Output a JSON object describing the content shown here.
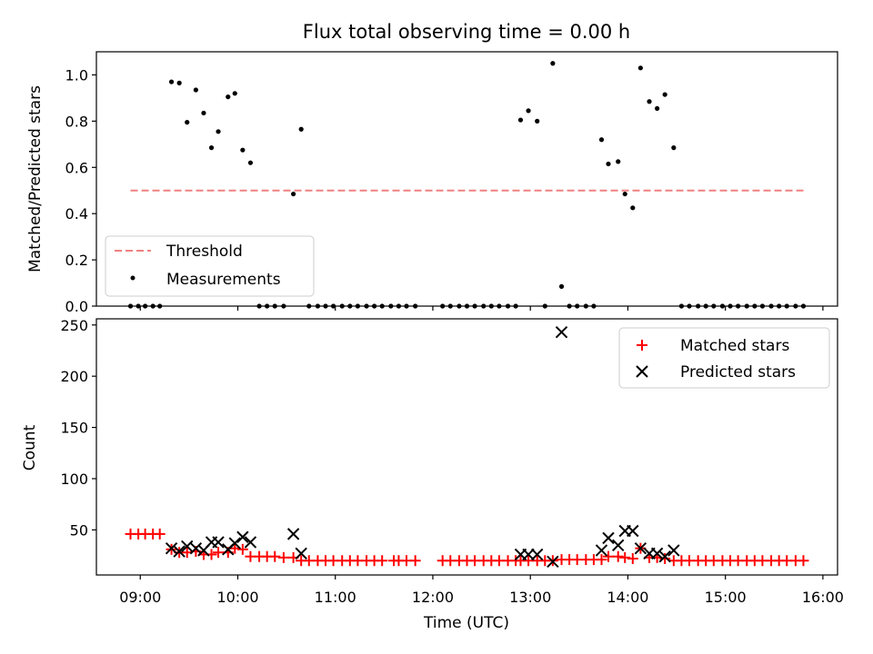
{
  "chart_data": [
    {
      "type": "scatter",
      "title": "Flux total observing time = 0.00 h",
      "xlabel": "",
      "ylabel": "Matched/Predicted stars",
      "xlim": [
        8.55,
        16.15
      ],
      "ylim": [
        0,
        1.1
      ],
      "yticks": [
        0.0,
        0.2,
        0.4,
        0.6,
        0.8,
        1.0
      ],
      "ytick_labels": [
        "0.0",
        "0.2",
        "0.4",
        "0.6",
        "0.8",
        "1.0"
      ],
      "xticks": [
        9,
        10,
        11,
        12,
        13,
        14,
        15,
        16
      ],
      "grid": false,
      "legend": {
        "position": "lower-left",
        "entries": [
          "Threshold",
          "Measurements"
        ]
      },
      "threshold": {
        "name": "Threshold",
        "value": 0.5,
        "x": [
          8.9,
          15.83
        ],
        "color": "#f08080",
        "style": "dashed"
      },
      "series": [
        {
          "name": "Measurements",
          "color": "#000000",
          "points": [
            [
              8.9,
              0
            ],
            [
              8.98,
              0
            ],
            [
              9.05,
              0
            ],
            [
              9.13,
              0
            ],
            [
              9.2,
              0
            ],
            [
              9.32,
              0.97
            ],
            [
              9.4,
              0.965
            ],
            [
              9.48,
              0.795
            ],
            [
              9.57,
              0.935
            ],
            [
              9.65,
              0.835
            ],
            [
              9.73,
              0.685
            ],
            [
              9.8,
              0.755
            ],
            [
              9.9,
              0.905
            ],
            [
              9.97,
              0.92
            ],
            [
              10.05,
              0.675
            ],
            [
              10.13,
              0.62
            ],
            [
              10.22,
              0
            ],
            [
              10.3,
              0
            ],
            [
              10.38,
              0
            ],
            [
              10.47,
              0
            ],
            [
              10.57,
              0.485
            ],
            [
              10.65,
              0.765
            ],
            [
              10.73,
              0
            ],
            [
              10.82,
              0
            ],
            [
              10.9,
              0
            ],
            [
              10.98,
              0
            ],
            [
              11.07,
              0
            ],
            [
              11.15,
              0
            ],
            [
              11.23,
              0
            ],
            [
              11.32,
              0
            ],
            [
              11.4,
              0
            ],
            [
              11.48,
              0
            ],
            [
              11.57,
              0
            ],
            [
              11.65,
              0
            ],
            [
              11.73,
              0
            ],
            [
              11.82,
              0
            ],
            [
              12.1,
              0
            ],
            [
              12.18,
              0
            ],
            [
              12.27,
              0
            ],
            [
              12.35,
              0
            ],
            [
              12.43,
              0
            ],
            [
              12.52,
              0
            ],
            [
              12.6,
              0
            ],
            [
              12.68,
              0
            ],
            [
              12.77,
              0
            ],
            [
              12.85,
              0
            ],
            [
              12.9,
              0.805
            ],
            [
              12.98,
              0.845
            ],
            [
              13.07,
              0.8
            ],
            [
              13.15,
              0
            ],
            [
              13.23,
              1.05
            ],
            [
              13.32,
              0.085
            ],
            [
              13.4,
              0
            ],
            [
              13.48,
              0
            ],
            [
              13.57,
              0
            ],
            [
              13.65,
              0
            ],
            [
              13.73,
              0.72
            ],
            [
              13.8,
              0.615
            ],
            [
              13.9,
              0.625
            ],
            [
              13.97,
              0.485
            ],
            [
              14.05,
              0.425
            ],
            [
              14.13,
              1.03
            ],
            [
              14.22,
              0.885
            ],
            [
              14.3,
              0.855
            ],
            [
              14.38,
              0.915
            ],
            [
              14.47,
              0.685
            ],
            [
              14.55,
              0
            ],
            [
              14.63,
              0
            ],
            [
              14.72,
              0
            ],
            [
              14.8,
              0
            ],
            [
              14.88,
              0
            ],
            [
              14.97,
              0
            ],
            [
              15.05,
              0
            ],
            [
              15.13,
              0
            ],
            [
              15.22,
              0
            ],
            [
              15.3,
              0
            ],
            [
              15.38,
              0
            ],
            [
              15.47,
              0
            ],
            [
              15.55,
              0
            ],
            [
              15.63,
              0
            ],
            [
              15.72,
              0
            ],
            [
              15.8,
              0
            ]
          ]
        }
      ]
    },
    {
      "type": "scatter",
      "title": "",
      "xlabel": "Time (UTC)",
      "ylabel": "Count",
      "xlim": [
        8.55,
        16.15
      ],
      "ylim": [
        6,
        256
      ],
      "yticks": [
        50,
        100,
        150,
        200,
        250
      ],
      "ytick_labels": [
        "50",
        "100",
        "150",
        "200",
        "250"
      ],
      "xticks": [
        9,
        10,
        11,
        12,
        13,
        14,
        15,
        16
      ],
      "xtick_labels": [
        "09:00",
        "10:00",
        "11:00",
        "12:00",
        "13:00",
        "14:00",
        "15:00",
        "16:00"
      ],
      "grid": false,
      "legend": {
        "position": "top-right",
        "entries": [
          "Matched stars",
          "Predicted stars"
        ]
      },
      "series": [
        {
          "name": "Matched stars",
          "marker": "plus",
          "color": "#ff0000",
          "points": [
            [
              8.9,
              46
            ],
            [
              8.98,
              46
            ],
            [
              9.05,
              46
            ],
            [
              9.13,
              46
            ],
            [
              9.2,
              46
            ],
            [
              9.32,
              31
            ],
            [
              9.4,
              28
            ],
            [
              9.48,
              28
            ],
            [
              9.57,
              29
            ],
            [
              9.65,
              26
            ],
            [
              9.73,
              26
            ],
            [
              9.8,
              28
            ],
            [
              9.9,
              28
            ],
            [
              9.97,
              32
            ],
            [
              10.05,
              31
            ],
            [
              10.13,
              24
            ],
            [
              10.22,
              24
            ],
            [
              10.3,
              24
            ],
            [
              10.38,
              24
            ],
            [
              10.47,
              23
            ],
            [
              10.57,
              23
            ],
            [
              10.65,
              20
            ],
            [
              10.73,
              20
            ],
            [
              10.82,
              20
            ],
            [
              10.9,
              20
            ],
            [
              10.98,
              20
            ],
            [
              11.07,
              20
            ],
            [
              11.15,
              20
            ],
            [
              11.23,
              20
            ],
            [
              11.32,
              20
            ],
            [
              11.4,
              20
            ],
            [
              11.48,
              20
            ],
            [
              11.6,
              20
            ],
            [
              11.65,
              20
            ],
            [
              11.73,
              20
            ],
            [
              11.82,
              20
            ],
            [
              12.1,
              20
            ],
            [
              12.18,
              20
            ],
            [
              12.27,
              20
            ],
            [
              12.35,
              20
            ],
            [
              12.43,
              20
            ],
            [
              12.52,
              20
            ],
            [
              12.6,
              20
            ],
            [
              12.68,
              20
            ],
            [
              12.77,
              20
            ],
            [
              12.85,
              20
            ],
            [
              12.9,
              20
            ],
            [
              12.98,
              20
            ],
            [
              13.07,
              20
            ],
            [
              13.15,
              20
            ],
            [
              13.23,
              20
            ],
            [
              13.32,
              21
            ],
            [
              13.4,
              21
            ],
            [
              13.48,
              21
            ],
            [
              13.57,
              21
            ],
            [
              13.65,
              21
            ],
            [
              13.73,
              21
            ],
            [
              13.8,
              24
            ],
            [
              13.9,
              24
            ],
            [
              13.97,
              23
            ],
            [
              14.05,
              22
            ],
            [
              14.13,
              32
            ],
            [
              14.22,
              23
            ],
            [
              14.3,
              23
            ],
            [
              14.38,
              22
            ],
            [
              14.47,
              20
            ],
            [
              14.55,
              20
            ],
            [
              14.63,
              20
            ],
            [
              14.72,
              20
            ],
            [
              14.8,
              20
            ],
            [
              14.88,
              20
            ],
            [
              14.97,
              20
            ],
            [
              15.05,
              20
            ],
            [
              15.13,
              20
            ],
            [
              15.22,
              20
            ],
            [
              15.3,
              20
            ],
            [
              15.38,
              20
            ],
            [
              15.47,
              20
            ],
            [
              15.55,
              20
            ],
            [
              15.63,
              20
            ],
            [
              15.72,
              20
            ],
            [
              15.8,
              20
            ]
          ]
        },
        {
          "name": "Predicted stars",
          "marker": "x",
          "color": "#000000",
          "points": [
            [
              9.32,
              32
            ],
            [
              9.4,
              29
            ],
            [
              9.48,
              34
            ],
            [
              9.57,
              32
            ],
            [
              9.65,
              30
            ],
            [
              9.73,
              38
            ],
            [
              9.8,
              38
            ],
            [
              9.9,
              31
            ],
            [
              9.97,
              37
            ],
            [
              10.05,
              43
            ],
            [
              10.13,
              38
            ],
            [
              10.57,
              46
            ],
            [
              10.65,
              27
            ],
            [
              12.9,
              26
            ],
            [
              12.98,
              26
            ],
            [
              13.07,
              26
            ],
            [
              13.23,
              19
            ],
            [
              13.32,
              243
            ],
            [
              13.73,
              30
            ],
            [
              13.8,
              42
            ],
            [
              13.9,
              35
            ],
            [
              13.97,
              49
            ],
            [
              14.05,
              49
            ],
            [
              14.13,
              32
            ],
            [
              14.22,
              27
            ],
            [
              14.3,
              27
            ],
            [
              14.38,
              24
            ],
            [
              14.47,
              30
            ]
          ]
        }
      ]
    }
  ]
}
